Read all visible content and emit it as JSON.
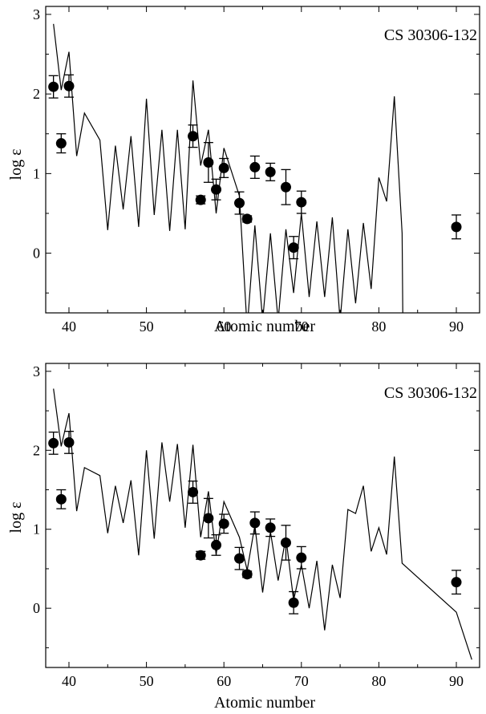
{
  "chart_data": [
    {
      "type": "scatter",
      "title": "CS 30306-132",
      "xlabel": "Atomic number",
      "ylabel": "log ε",
      "xlim": [
        37,
        93
      ],
      "ylim": [
        -0.75,
        3.1
      ],
      "x_ticks": [
        40,
        50,
        60,
        70,
        80,
        90
      ],
      "y_ticks": [
        0,
        1,
        2,
        3
      ],
      "grid": false,
      "series": [
        {
          "kind": "points_with_error_bars",
          "x": [
            38,
            39,
            40,
            56,
            57,
            58,
            59,
            60,
            62,
            63,
            64,
            66,
            68,
            69,
            70,
            90
          ],
          "y": [
            2.09,
            1.38,
            2.1,
            1.47,
            0.67,
            1.14,
            0.8,
            1.07,
            0.63,
            0.43,
            1.08,
            1.02,
            0.83,
            0.07,
            0.64,
            0.33
          ],
          "err": [
            0.14,
            0.12,
            0.14,
            0.14,
            0.05,
            0.25,
            0.13,
            0.12,
            0.14,
            0.04,
            0.14,
            0.11,
            0.22,
            0.14,
            0.14,
            0.15
          ]
        },
        {
          "kind": "line",
          "x": [
            38,
            39,
            40,
            41,
            42,
            44,
            45,
            46,
            47,
            48,
            49,
            50,
            51,
            52,
            53,
            54,
            55,
            56,
            57,
            58,
            59,
            60,
            62,
            63,
            64,
            65,
            66,
            67,
            68,
            69,
            70,
            71,
            72,
            73,
            74,
            75,
            76,
            77,
            78,
            79,
            80,
            81,
            82,
            83,
            83.1
          ],
          "y": [
            2.88,
            2.05,
            2.53,
            1.22,
            1.76,
            1.42,
            0.29,
            1.35,
            0.55,
            1.47,
            0.33,
            1.94,
            0.48,
            1.55,
            0.28,
            1.55,
            0.3,
            2.17,
            1.1,
            1.55,
            0.5,
            1.32,
            0.72,
            -0.95,
            0.35,
            -0.85,
            0.25,
            -0.85,
            0.3,
            -0.5,
            0.5,
            -0.55,
            0.4,
            -0.55,
            0.45,
            -0.85,
            0.3,
            -0.63,
            0.38,
            -0.45,
            0.95,
            0.65,
            1.97,
            0.25,
            -0.95
          ]
        }
      ]
    },
    {
      "type": "scatter",
      "title": "CS 30306-132",
      "xlabel": "Atomic number",
      "ylabel": "log ε",
      "xlim": [
        37,
        93
      ],
      "ylim": [
        -0.75,
        3.1
      ],
      "x_ticks": [
        40,
        50,
        60,
        70,
        80,
        90
      ],
      "y_ticks": [
        0,
        1,
        2,
        3
      ],
      "grid": false,
      "series": [
        {
          "kind": "points_with_error_bars",
          "x": [
            38,
            39,
            40,
            56,
            57,
            58,
            59,
            60,
            62,
            63,
            64,
            66,
            68,
            69,
            70,
            90
          ],
          "y": [
            2.09,
            1.38,
            2.1,
            1.47,
            0.67,
            1.14,
            0.8,
            1.07,
            0.63,
            0.43,
            1.08,
            1.02,
            0.83,
            0.07,
            0.64,
            0.33
          ],
          "err": [
            0.14,
            0.12,
            0.14,
            0.14,
            0.05,
            0.25,
            0.13,
            0.12,
            0.14,
            0.04,
            0.14,
            0.11,
            0.22,
            0.14,
            0.14,
            0.15
          ]
        },
        {
          "kind": "line",
          "x": [
            38,
            39,
            40,
            41,
            42,
            44,
            45,
            46,
            47,
            48,
            49,
            50,
            51,
            52,
            53,
            54,
            55,
            56,
            57,
            58,
            59,
            60,
            62,
            63,
            64,
            65,
            66,
            67,
            68,
            69,
            70,
            71,
            72,
            73,
            74,
            75,
            76,
            77,
            78,
            79,
            80,
            81,
            82,
            83,
            90,
            92
          ],
          "y": [
            2.78,
            2.05,
            2.47,
            1.23,
            1.78,
            1.68,
            0.95,
            1.55,
            1.08,
            1.62,
            0.67,
            2.0,
            0.88,
            2.1,
            1.35,
            2.08,
            1.02,
            2.07,
            0.9,
            1.48,
            0.68,
            1.35,
            0.9,
            0.48,
            1.05,
            0.2,
            0.97,
            0.35,
            0.9,
            0.1,
            0.55,
            0.0,
            0.6,
            -0.28,
            0.55,
            0.13,
            1.25,
            1.2,
            1.55,
            0.72,
            1.02,
            0.68,
            1.92,
            0.57,
            -0.05,
            -0.65
          ]
        }
      ]
    }
  ]
}
